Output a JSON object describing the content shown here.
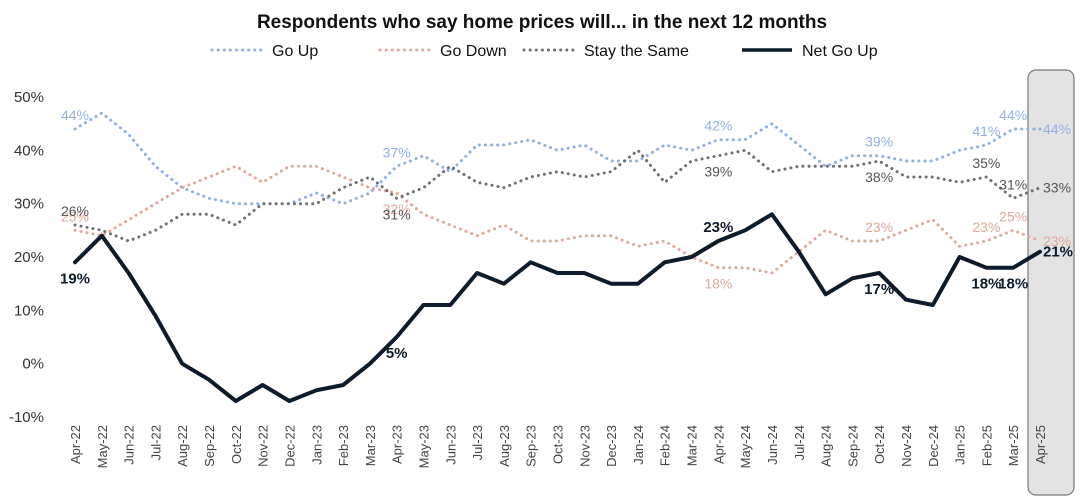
{
  "chart_data": {
    "type": "line",
    "title": "Respondents who say home prices will... in the next 12 months",
    "xlabel": "",
    "ylabel": "",
    "ylim": [
      -10,
      50
    ],
    "yticks": [
      "50%",
      "40%",
      "30%",
      "20%",
      "10%",
      "0%",
      "-10%"
    ],
    "grid": false,
    "legend_position": "top",
    "categories": [
      "Apr-22",
      "May-22",
      "Jun-22",
      "Jul-22",
      "Aug-22",
      "Sep-22",
      "Oct-22",
      "Nov-22",
      "Dec-22",
      "Jan-23",
      "Feb-23",
      "Mar-23",
      "Apr-23",
      "May-23",
      "Jun-23",
      "Jul-23",
      "Aug-23",
      "Sep-23",
      "Oct-23",
      "Nov-23",
      "Dec-23",
      "Jan-24",
      "Feb-24",
      "Mar-24",
      "Apr-24",
      "May-24",
      "Jun-24",
      "Jul-24",
      "Aug-24",
      "Sep-24",
      "Oct-24",
      "Nov-24",
      "Dec-24",
      "Jan-25",
      "Feb-25",
      "Mar-25",
      "Apr-25"
    ],
    "highlight_category": "Apr-25",
    "series": [
      {
        "name": "Go Up",
        "color": "#8fb0e3",
        "style": "dotted",
        "values": [
          44,
          47,
          43,
          37,
          33,
          31,
          30,
          30,
          30,
          32,
          30,
          32,
          37,
          39,
          36,
          41,
          41,
          42,
          40,
          41,
          38,
          38,
          41,
          40,
          42,
          42,
          45,
          41,
          37,
          39,
          39,
          38,
          38,
          40,
          41,
          44,
          44
        ],
        "labels": [
          {
            "i": 0,
            "text": "44%",
            "pos": "above"
          },
          {
            "i": 12,
            "text": "37%",
            "pos": "above"
          },
          {
            "i": 24,
            "text": "42%",
            "pos": "above"
          },
          {
            "i": 30,
            "text": "39%",
            "pos": "above"
          },
          {
            "i": 34,
            "text": "41%",
            "pos": "above"
          },
          {
            "i": 35,
            "text": "44%",
            "pos": "above"
          },
          {
            "i": 36,
            "text": "44%",
            "pos": "right"
          }
        ]
      },
      {
        "name": "Go Down",
        "color": "#e0a898",
        "style": "dotted",
        "values": [
          25,
          24,
          27,
          30,
          33,
          35,
          37,
          34,
          37,
          37,
          35,
          33,
          32,
          28,
          26,
          24,
          26,
          23,
          23,
          24,
          24,
          22,
          23,
          20,
          18,
          18,
          17,
          21,
          25,
          23,
          23,
          25,
          27,
          22,
          23,
          25,
          23
        ],
        "labels": [
          {
            "i": 0,
            "text": "25%",
            "pos": "above"
          },
          {
            "i": 12,
            "text": "32%",
            "pos": "below"
          },
          {
            "i": 24,
            "text": "18%",
            "pos": "below"
          },
          {
            "i": 30,
            "text": "23%",
            "pos": "above"
          },
          {
            "i": 34,
            "text": "23%",
            "pos": "above"
          },
          {
            "i": 35,
            "text": "25%",
            "pos": "above"
          },
          {
            "i": 36,
            "text": "23%",
            "pos": "right"
          }
        ]
      },
      {
        "name": "Stay the Same",
        "color": "#707070",
        "style": "dotted",
        "values": [
          26,
          25,
          23,
          25,
          28,
          28,
          26,
          30,
          30,
          30,
          33,
          35,
          31,
          33,
          37,
          34,
          33,
          35,
          36,
          35,
          36,
          40,
          34,
          38,
          39,
          40,
          36,
          37,
          37,
          37,
          38,
          35,
          35,
          34,
          35,
          31,
          33
        ],
        "labels": [
          {
            "i": 0,
            "text": "26%",
            "pos": "above"
          },
          {
            "i": 12,
            "text": "31%",
            "pos": "below"
          },
          {
            "i": 24,
            "text": "39%",
            "pos": "below"
          },
          {
            "i": 30,
            "text": "38%",
            "pos": "below"
          },
          {
            "i": 34,
            "text": "35%",
            "pos": "above"
          },
          {
            "i": 35,
            "text": "31%",
            "pos": "above"
          },
          {
            "i": 36,
            "text": "33%",
            "pos": "right"
          }
        ]
      },
      {
        "name": "Net Go Up",
        "color": "#0d1b2a",
        "style": "solid",
        "values": [
          19,
          24,
          17,
          9,
          0,
          -3,
          -7,
          -4,
          -7,
          -5,
          -4,
          0,
          5,
          11,
          11,
          17,
          15,
          19,
          17,
          17,
          15,
          15,
          19,
          20,
          23,
          25,
          28,
          21,
          13,
          16,
          17,
          12,
          11,
          20,
          18,
          18,
          21
        ],
        "labels": [
          {
            "i": 0,
            "text": "19%",
            "pos": "below"
          },
          {
            "i": 12,
            "text": "5%",
            "pos": "below"
          },
          {
            "i": 24,
            "text": "23%",
            "pos": "above"
          },
          {
            "i": 30,
            "text": "17%",
            "pos": "below"
          },
          {
            "i": 34,
            "text": "18%",
            "pos": "below"
          },
          {
            "i": 35,
            "text": "18%",
            "pos": "below"
          },
          {
            "i": 36,
            "text": "21%",
            "pos": "right"
          }
        ]
      }
    ]
  }
}
